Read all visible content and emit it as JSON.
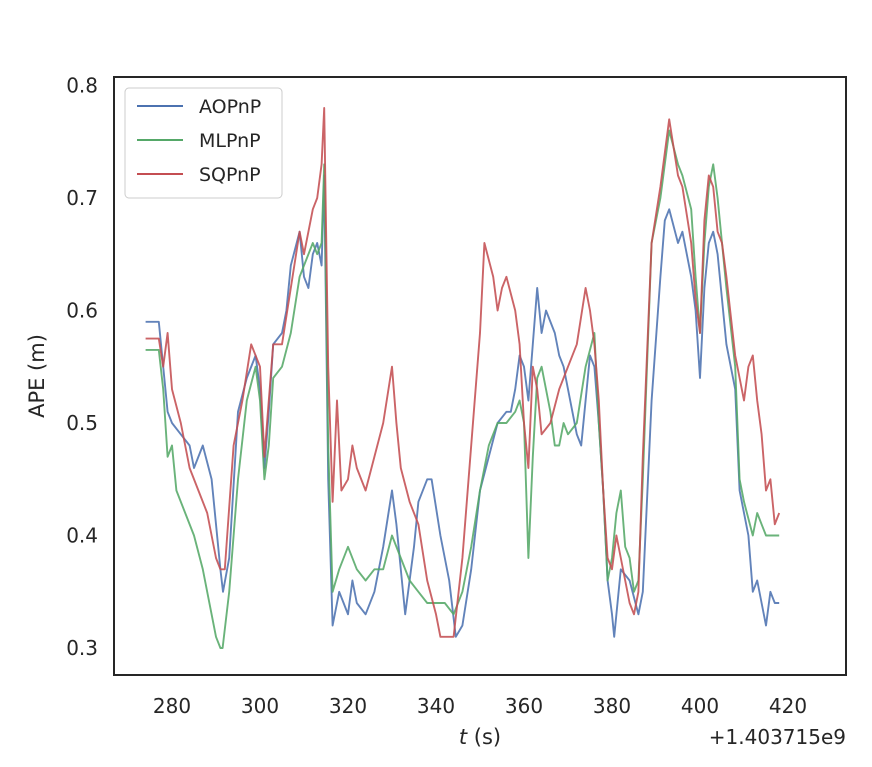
{
  "chart_data": {
    "type": "line",
    "xlabel_var": "t",
    "xlabel_unit": " (s)",
    "ylabel": "APE (m)",
    "x_offset_label": "+1.403715e9",
    "xlim": [
      267,
      422
    ],
    "ylim": [
      0.274,
      0.8
    ],
    "xticks": [
      280,
      300,
      320,
      340,
      360,
      380,
      400,
      420
    ],
    "yticks": [
      0.3,
      0.4,
      0.5,
      0.6,
      0.7,
      0.8
    ],
    "xtick_labels": [
      "280",
      "300",
      "320",
      "340",
      "360",
      "380",
      "400",
      "420"
    ],
    "ytick_labels": [
      "0.3",
      "0.4",
      "0.5",
      "0.6",
      "0.7",
      "0.8"
    ],
    "grid": false,
    "legend_position": "top-left",
    "series": [
      {
        "name": "AOPnP",
        "color": "#4c72b0",
        "points": [
          [
            274,
            0.59
          ],
          [
            277,
            0.59
          ],
          [
            278,
            0.55
          ],
          [
            279,
            0.51
          ],
          [
            280,
            0.5
          ],
          [
            282,
            0.49
          ],
          [
            284,
            0.48
          ],
          [
            285,
            0.46
          ],
          [
            287,
            0.48
          ],
          [
            289,
            0.45
          ],
          [
            290,
            0.41
          ],
          [
            291,
            0.37
          ],
          [
            291.6,
            0.35
          ],
          [
            293,
            0.38
          ],
          [
            295,
            0.51
          ],
          [
            297,
            0.54
          ],
          [
            299,
            0.56
          ],
          [
            300,
            0.53
          ],
          [
            301,
            0.46
          ],
          [
            302,
            0.51
          ],
          [
            303,
            0.57
          ],
          [
            305,
            0.58
          ],
          [
            306,
            0.6
          ],
          [
            307,
            0.64
          ],
          [
            309,
            0.67
          ],
          [
            310,
            0.63
          ],
          [
            311,
            0.62
          ],
          [
            312,
            0.65
          ],
          [
            313,
            0.66
          ],
          [
            314,
            0.64
          ],
          [
            314.6,
            0.72
          ],
          [
            315.5,
            0.45
          ],
          [
            316.5,
            0.32
          ],
          [
            318,
            0.35
          ],
          [
            319,
            0.34
          ],
          [
            320,
            0.33
          ],
          [
            321,
            0.36
          ],
          [
            322,
            0.34
          ],
          [
            324,
            0.33
          ],
          [
            326,
            0.35
          ],
          [
            328,
            0.39
          ],
          [
            330,
            0.44
          ],
          [
            331,
            0.41
          ],
          [
            333,
            0.33
          ],
          [
            335,
            0.39
          ],
          [
            336,
            0.43
          ],
          [
            338,
            0.45
          ],
          [
            339,
            0.45
          ],
          [
            341,
            0.4
          ],
          [
            343,
            0.36
          ],
          [
            344.5,
            0.31
          ],
          [
            346,
            0.32
          ],
          [
            348,
            0.37
          ],
          [
            350,
            0.44
          ],
          [
            352,
            0.47
          ],
          [
            354,
            0.5
          ],
          [
            356,
            0.51
          ],
          [
            357,
            0.51
          ],
          [
            358,
            0.53
          ],
          [
            359,
            0.56
          ],
          [
            360,
            0.55
          ],
          [
            361,
            0.52
          ],
          [
            362,
            0.57
          ],
          [
            363,
            0.62
          ],
          [
            364,
            0.58
          ],
          [
            365,
            0.6
          ],
          [
            367,
            0.58
          ],
          [
            368,
            0.56
          ],
          [
            369,
            0.55
          ],
          [
            371,
            0.51
          ],
          [
            372,
            0.49
          ],
          [
            373,
            0.48
          ],
          [
            374,
            0.52
          ],
          [
            375,
            0.56
          ],
          [
            376,
            0.55
          ],
          [
            377,
            0.5
          ],
          [
            378,
            0.44
          ],
          [
            379,
            0.36
          ],
          [
            380,
            0.33
          ],
          [
            380.5,
            0.31
          ],
          [
            382,
            0.37
          ],
          [
            384,
            0.36
          ],
          [
            386,
            0.33
          ],
          [
            387,
            0.35
          ],
          [
            389,
            0.52
          ],
          [
            391,
            0.63
          ],
          [
            392,
            0.68
          ],
          [
            393,
            0.69
          ],
          [
            395,
            0.66
          ],
          [
            396,
            0.67
          ],
          [
            398,
            0.63
          ],
          [
            399,
            0.6
          ],
          [
            400,
            0.54
          ],
          [
            401,
            0.62
          ],
          [
            402,
            0.66
          ],
          [
            403,
            0.67
          ],
          [
            404,
            0.65
          ],
          [
            405,
            0.61
          ],
          [
            406,
            0.57
          ],
          [
            408,
            0.53
          ],
          [
            409,
            0.44
          ],
          [
            411,
            0.4
          ],
          [
            412,
            0.35
          ],
          [
            413,
            0.36
          ],
          [
            414,
            0.34
          ],
          [
            415,
            0.32
          ],
          [
            416,
            0.35
          ],
          [
            417,
            0.34
          ],
          [
            418,
            0.34
          ]
        ]
      },
      {
        "name": "MLPnP",
        "color": "#55a868",
        "points": [
          [
            274,
            0.565
          ],
          [
            277,
            0.565
          ],
          [
            278,
            0.53
          ],
          [
            279,
            0.47
          ],
          [
            280,
            0.48
          ],
          [
            281,
            0.44
          ],
          [
            283,
            0.42
          ],
          [
            285,
            0.4
          ],
          [
            287,
            0.37
          ],
          [
            289,
            0.33
          ],
          [
            290,
            0.31
          ],
          [
            291,
            0.3
          ],
          [
            291.5,
            0.3
          ],
          [
            293,
            0.35
          ],
          [
            295,
            0.45
          ],
          [
            297,
            0.52
          ],
          [
            299,
            0.55
          ],
          [
            300,
            0.52
          ],
          [
            301,
            0.45
          ],
          [
            302,
            0.48
          ],
          [
            303,
            0.54
          ],
          [
            305,
            0.55
          ],
          [
            307,
            0.58
          ],
          [
            309,
            0.63
          ],
          [
            310,
            0.64
          ],
          [
            312,
            0.66
          ],
          [
            313,
            0.65
          ],
          [
            314,
            0.66
          ],
          [
            314.6,
            0.73
          ],
          [
            315.5,
            0.48
          ],
          [
            316.5,
            0.35
          ],
          [
            318,
            0.37
          ],
          [
            320,
            0.39
          ],
          [
            322,
            0.37
          ],
          [
            324,
            0.36
          ],
          [
            326,
            0.37
          ],
          [
            328,
            0.37
          ],
          [
            330,
            0.4
          ],
          [
            332,
            0.38
          ],
          [
            334,
            0.36
          ],
          [
            336,
            0.35
          ],
          [
            338,
            0.34
          ],
          [
            340,
            0.34
          ],
          [
            342,
            0.34
          ],
          [
            344,
            0.33
          ],
          [
            346,
            0.35
          ],
          [
            348,
            0.39
          ],
          [
            350,
            0.44
          ],
          [
            352,
            0.48
          ],
          [
            354,
            0.5
          ],
          [
            356,
            0.5
          ],
          [
            358,
            0.51
          ],
          [
            359,
            0.52
          ],
          [
            360,
            0.5
          ],
          [
            361,
            0.38
          ],
          [
            362,
            0.47
          ],
          [
            363,
            0.54
          ],
          [
            364,
            0.55
          ],
          [
            366,
            0.51
          ],
          [
            367,
            0.48
          ],
          [
            368,
            0.48
          ],
          [
            369,
            0.5
          ],
          [
            370,
            0.49
          ],
          [
            372,
            0.5
          ],
          [
            374,
            0.55
          ],
          [
            376,
            0.58
          ],
          [
            377,
            0.5
          ],
          [
            378,
            0.44
          ],
          [
            379,
            0.36
          ],
          [
            380,
            0.38
          ],
          [
            381,
            0.42
          ],
          [
            382,
            0.44
          ],
          [
            383,
            0.39
          ],
          [
            384,
            0.38
          ],
          [
            385,
            0.35
          ],
          [
            386,
            0.36
          ],
          [
            387,
            0.45
          ],
          [
            389,
            0.66
          ],
          [
            391,
            0.7
          ],
          [
            393,
            0.76
          ],
          [
            395,
            0.73
          ],
          [
            396,
            0.72
          ],
          [
            398,
            0.69
          ],
          [
            399,
            0.63
          ],
          [
            400,
            0.58
          ],
          [
            401,
            0.66
          ],
          [
            402,
            0.71
          ],
          [
            403,
            0.73
          ],
          [
            404,
            0.7
          ],
          [
            405,
            0.66
          ],
          [
            406,
            0.62
          ],
          [
            408,
            0.55
          ],
          [
            409,
            0.45
          ],
          [
            410,
            0.43
          ],
          [
            412,
            0.4
          ],
          [
            413,
            0.42
          ],
          [
            414,
            0.41
          ],
          [
            415,
            0.4
          ],
          [
            416,
            0.4
          ],
          [
            417,
            0.4
          ],
          [
            418,
            0.4
          ]
        ]
      },
      {
        "name": "SQPnP",
        "color": "#c44e52",
        "points": [
          [
            274,
            0.575
          ],
          [
            277,
            0.575
          ],
          [
            278,
            0.55
          ],
          [
            279,
            0.58
          ],
          [
            280,
            0.53
          ],
          [
            282,
            0.5
          ],
          [
            284,
            0.46
          ],
          [
            286,
            0.44
          ],
          [
            288,
            0.42
          ],
          [
            289,
            0.4
          ],
          [
            290,
            0.38
          ],
          [
            291,
            0.37
          ],
          [
            292,
            0.37
          ],
          [
            294,
            0.48
          ],
          [
            296,
            0.52
          ],
          [
            298,
            0.57
          ],
          [
            300,
            0.55
          ],
          [
            301,
            0.47
          ],
          [
            302,
            0.52
          ],
          [
            303,
            0.57
          ],
          [
            305,
            0.57
          ],
          [
            307,
            0.62
          ],
          [
            309,
            0.67
          ],
          [
            310,
            0.65
          ],
          [
            312,
            0.69
          ],
          [
            313,
            0.7
          ],
          [
            314,
            0.73
          ],
          [
            314.6,
            0.78
          ],
          [
            315.5,
            0.55
          ],
          [
            316.5,
            0.43
          ],
          [
            317.5,
            0.52
          ],
          [
            318.5,
            0.44
          ],
          [
            320,
            0.45
          ],
          [
            321,
            0.48
          ],
          [
            322,
            0.46
          ],
          [
            324,
            0.44
          ],
          [
            326,
            0.47
          ],
          [
            328,
            0.5
          ],
          [
            330,
            0.55
          ],
          [
            331,
            0.5
          ],
          [
            332,
            0.46
          ],
          [
            334,
            0.43
          ],
          [
            336,
            0.41
          ],
          [
            338,
            0.36
          ],
          [
            340,
            0.33
          ],
          [
            341,
            0.31
          ],
          [
            342,
            0.31
          ],
          [
            344,
            0.31
          ],
          [
            346,
            0.38
          ],
          [
            348,
            0.48
          ],
          [
            350,
            0.58
          ],
          [
            351,
            0.66
          ],
          [
            353,
            0.63
          ],
          [
            354,
            0.6
          ],
          [
            355,
            0.62
          ],
          [
            356,
            0.63
          ],
          [
            358,
            0.6
          ],
          [
            359,
            0.57
          ],
          [
            360,
            0.5
          ],
          [
            361,
            0.46
          ],
          [
            362,
            0.55
          ],
          [
            363,
            0.53
          ],
          [
            364,
            0.49
          ],
          [
            366,
            0.5
          ],
          [
            368,
            0.53
          ],
          [
            370,
            0.55
          ],
          [
            372,
            0.57
          ],
          [
            374,
            0.62
          ],
          [
            375,
            0.6
          ],
          [
            376,
            0.57
          ],
          [
            377,
            0.52
          ],
          [
            378,
            0.44
          ],
          [
            379,
            0.38
          ],
          [
            380,
            0.37
          ],
          [
            381,
            0.4
          ],
          [
            382,
            0.38
          ],
          [
            383,
            0.36
          ],
          [
            384,
            0.34
          ],
          [
            385,
            0.33
          ],
          [
            386,
            0.35
          ],
          [
            387,
            0.47
          ],
          [
            389,
            0.66
          ],
          [
            391,
            0.71
          ],
          [
            393,
            0.77
          ],
          [
            395,
            0.72
          ],
          [
            396,
            0.71
          ],
          [
            398,
            0.66
          ],
          [
            399,
            0.61
          ],
          [
            400,
            0.58
          ],
          [
            401,
            0.68
          ],
          [
            402,
            0.72
          ],
          [
            403,
            0.71
          ],
          [
            404,
            0.67
          ],
          [
            405,
            0.66
          ],
          [
            406,
            0.63
          ],
          [
            408,
            0.56
          ],
          [
            409,
            0.54
          ],
          [
            410,
            0.52
          ],
          [
            411,
            0.55
          ],
          [
            412,
            0.56
          ],
          [
            413,
            0.52
          ],
          [
            414,
            0.49
          ],
          [
            415,
            0.44
          ],
          [
            416,
            0.45
          ],
          [
            417,
            0.41
          ],
          [
            418,
            0.42
          ]
        ]
      }
    ]
  }
}
